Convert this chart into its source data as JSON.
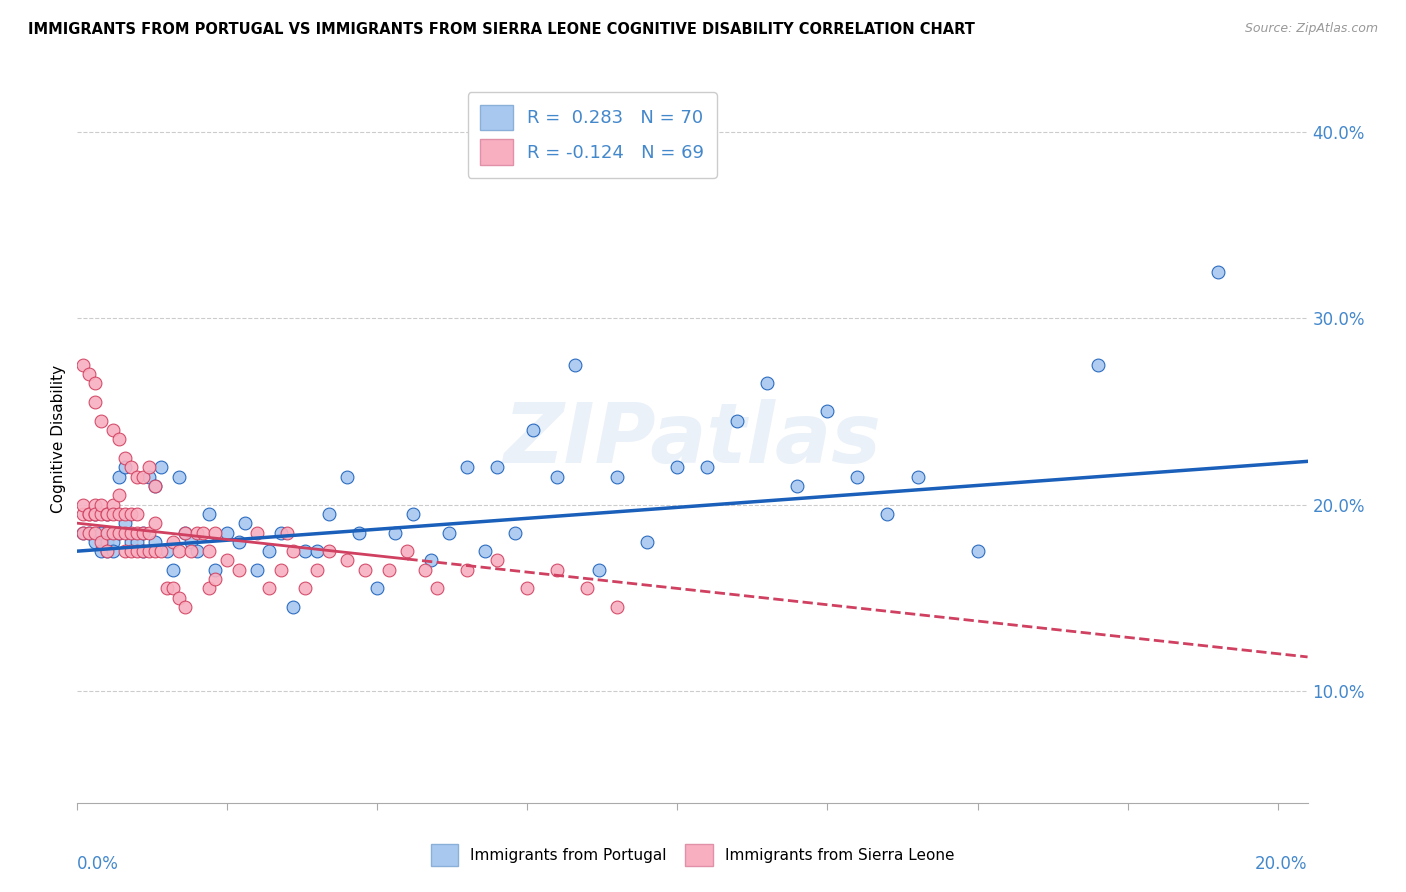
{
  "title": "IMMIGRANTS FROM PORTUGAL VS IMMIGRANTS FROM SIERRA LEONE COGNITIVE DISABILITY CORRELATION CHART",
  "source": "Source: ZipAtlas.com",
  "ylabel": "Cognitive Disability",
  "y_ticks": [
    0.1,
    0.2,
    0.3,
    0.4
  ],
  "y_tick_labels": [
    "10.0%",
    "20.0%",
    "30.0%",
    "40.0%"
  ],
  "xlim": [
    0.0,
    0.205
  ],
  "ylim": [
    0.04,
    0.43
  ],
  "R_portugal": 0.283,
  "N_portugal": 70,
  "R_sierra": -0.124,
  "N_sierra": 69,
  "color_portugal": "#a8c8f0",
  "color_sierra": "#f8b0c0",
  "line_color_portugal": "#1a5fba",
  "line_color_sierra": "#d04060",
  "watermark": "ZIPatlas",
  "portugal_x": [
    0.001,
    0.002,
    0.003,
    0.003,
    0.004,
    0.004,
    0.005,
    0.005,
    0.005,
    0.006,
    0.006,
    0.007,
    0.007,
    0.008,
    0.008,
    0.009,
    0.01,
    0.011,
    0.011,
    0.012,
    0.013,
    0.013,
    0.014,
    0.015,
    0.016,
    0.017,
    0.018,
    0.019,
    0.02,
    0.022,
    0.023,
    0.025,
    0.027,
    0.028,
    0.03,
    0.032,
    0.034,
    0.036,
    0.038,
    0.04,
    0.042,
    0.045,
    0.047,
    0.05,
    0.053,
    0.056,
    0.059,
    0.062,
    0.065,
    0.068,
    0.07,
    0.073,
    0.076,
    0.08,
    0.083,
    0.087,
    0.09,
    0.095,
    0.1,
    0.105,
    0.11,
    0.115,
    0.12,
    0.125,
    0.13,
    0.135,
    0.14,
    0.15,
    0.17,
    0.19
  ],
  "portugal_y": [
    0.185,
    0.185,
    0.18,
    0.195,
    0.175,
    0.185,
    0.175,
    0.18,
    0.195,
    0.18,
    0.175,
    0.185,
    0.215,
    0.19,
    0.22,
    0.18,
    0.18,
    0.175,
    0.185,
    0.215,
    0.18,
    0.21,
    0.22,
    0.175,
    0.165,
    0.215,
    0.185,
    0.18,
    0.175,
    0.195,
    0.165,
    0.185,
    0.18,
    0.19,
    0.165,
    0.175,
    0.185,
    0.145,
    0.175,
    0.175,
    0.195,
    0.215,
    0.185,
    0.155,
    0.185,
    0.195,
    0.17,
    0.185,
    0.22,
    0.175,
    0.22,
    0.185,
    0.24,
    0.215,
    0.275,
    0.165,
    0.215,
    0.18,
    0.22,
    0.22,
    0.245,
    0.265,
    0.21,
    0.25,
    0.215,
    0.195,
    0.215,
    0.175,
    0.275,
    0.325
  ],
  "sierra_x": [
    0.001,
    0.001,
    0.001,
    0.002,
    0.002,
    0.002,
    0.003,
    0.003,
    0.003,
    0.003,
    0.004,
    0.004,
    0.004,
    0.005,
    0.005,
    0.005,
    0.005,
    0.006,
    0.006,
    0.006,
    0.007,
    0.007,
    0.007,
    0.008,
    0.008,
    0.008,
    0.009,
    0.009,
    0.009,
    0.01,
    0.01,
    0.01,
    0.011,
    0.011,
    0.012,
    0.012,
    0.013,
    0.013,
    0.014,
    0.015,
    0.016,
    0.017,
    0.018,
    0.019,
    0.02,
    0.021,
    0.022,
    0.023,
    0.025,
    0.027,
    0.03,
    0.032,
    0.034,
    0.036,
    0.038,
    0.04,
    0.042,
    0.045,
    0.048,
    0.052,
    0.055,
    0.058,
    0.06,
    0.065,
    0.07,
    0.075,
    0.08,
    0.085,
    0.09
  ],
  "sierra_y": [
    0.195,
    0.2,
    0.185,
    0.195,
    0.185,
    0.195,
    0.195,
    0.185,
    0.2,
    0.195,
    0.18,
    0.195,
    0.2,
    0.175,
    0.185,
    0.195,
    0.195,
    0.185,
    0.2,
    0.195,
    0.185,
    0.195,
    0.205,
    0.175,
    0.185,
    0.195,
    0.175,
    0.185,
    0.195,
    0.175,
    0.185,
    0.195,
    0.175,
    0.185,
    0.175,
    0.185,
    0.175,
    0.19,
    0.175,
    0.155,
    0.18,
    0.175,
    0.185,
    0.175,
    0.185,
    0.185,
    0.175,
    0.185,
    0.17,
    0.165,
    0.185,
    0.155,
    0.165,
    0.175,
    0.155,
    0.165,
    0.175,
    0.17,
    0.165,
    0.165,
    0.175,
    0.165,
    0.155,
    0.165,
    0.17,
    0.155,
    0.165,
    0.155,
    0.145
  ],
  "sierra_outliers_x": [
    0.001,
    0.002,
    0.003,
    0.003,
    0.004,
    0.006,
    0.007,
    0.008,
    0.009,
    0.01,
    0.011,
    0.012,
    0.013,
    0.016,
    0.017,
    0.018,
    0.022,
    0.023,
    0.035
  ],
  "sierra_outliers_y": [
    0.275,
    0.27,
    0.265,
    0.255,
    0.245,
    0.24,
    0.235,
    0.225,
    0.22,
    0.215,
    0.215,
    0.22,
    0.21,
    0.155,
    0.15,
    0.145,
    0.155,
    0.16,
    0.185
  ]
}
